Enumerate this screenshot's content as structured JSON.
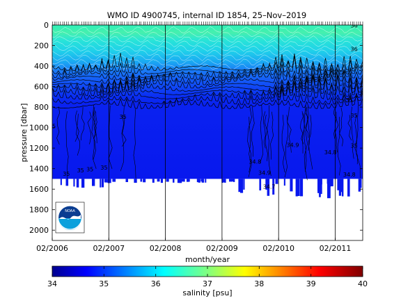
{
  "chart_data": [
    {
      "type": "heatmap",
      "title": "WMO ID 4900745, internal ID 1854, 25–Nov–2019",
      "xlabel": "month/year",
      "ylabel": "pressure [dbar]",
      "x_ticks": [
        "02/2006",
        "02/2007",
        "02/2008",
        "02/2009",
        "02/2010",
        "02/2011"
      ],
      "x_range": [
        "02/2006",
        "07/2011"
      ],
      "y_ticks": [
        0,
        200,
        400,
        600,
        800,
        1000,
        1200,
        1400,
        1600,
        1800,
        2000
      ],
      "ylim": [
        2100,
        0
      ],
      "y_reversed": true,
      "grid": false,
      "profile_depth_dbar": 1500,
      "contour_labels": [
        {
          "text": "35",
          "date": "2006-02",
          "pressure": 985
        },
        {
          "text": "35",
          "date": "2006-05",
          "pressure": 1450
        },
        {
          "text": "35",
          "date": "2006-08",
          "pressure": 1415
        },
        {
          "text": "35",
          "date": "2006-10",
          "pressure": 1405
        },
        {
          "text": "35",
          "date": "2007-01",
          "pressure": 1390
        },
        {
          "text": "35",
          "date": "2007-05",
          "pressure": 895
        },
        {
          "text": "34.8",
          "date": "2009-09",
          "pressure": 1330
        },
        {
          "text": "34.9",
          "date": "2009-11",
          "pressure": 1440
        },
        {
          "text": "34.7",
          "date": "2009-12",
          "pressure": 1575
        },
        {
          "text": "34.9",
          "date": "2010-05",
          "pressure": 1170
        },
        {
          "text": "34.8",
          "date": "2011-01",
          "pressure": 1240
        },
        {
          "text": "34.8",
          "date": "2011-05",
          "pressure": 1455
        },
        {
          "text": "35",
          "date": "2011-05",
          "pressure": 730
        },
        {
          "text": "35",
          "date": "2011-06",
          "pressure": 1175
        },
        {
          "text": "35",
          "date": "2011-06",
          "pressure": 880
        },
        {
          "text": "36",
          "date": "2011-06",
          "pressure": 5
        },
        {
          "text": "36",
          "date": "2011-06",
          "pressure": 235
        }
      ]
    },
    {
      "type": "heatmap",
      "colorbar": true,
      "xlabel": "salinity [psu]",
      "ticks": [
        34,
        35,
        36,
        37,
        38,
        39,
        40
      ],
      "range": [
        34,
        40
      ],
      "colormap": "jet"
    }
  ],
  "logo": {
    "text": "NOAA",
    "colors": {
      "top": "#0a3d91",
      "bottom": "#0aa0dc",
      "bird": "#ffffff"
    }
  },
  "colors": {
    "deep": "#0505ee",
    "mid": "#1a6bff",
    "cyan": "#2fe0d8",
    "green": "#6df09a",
    "line": "#000000"
  }
}
